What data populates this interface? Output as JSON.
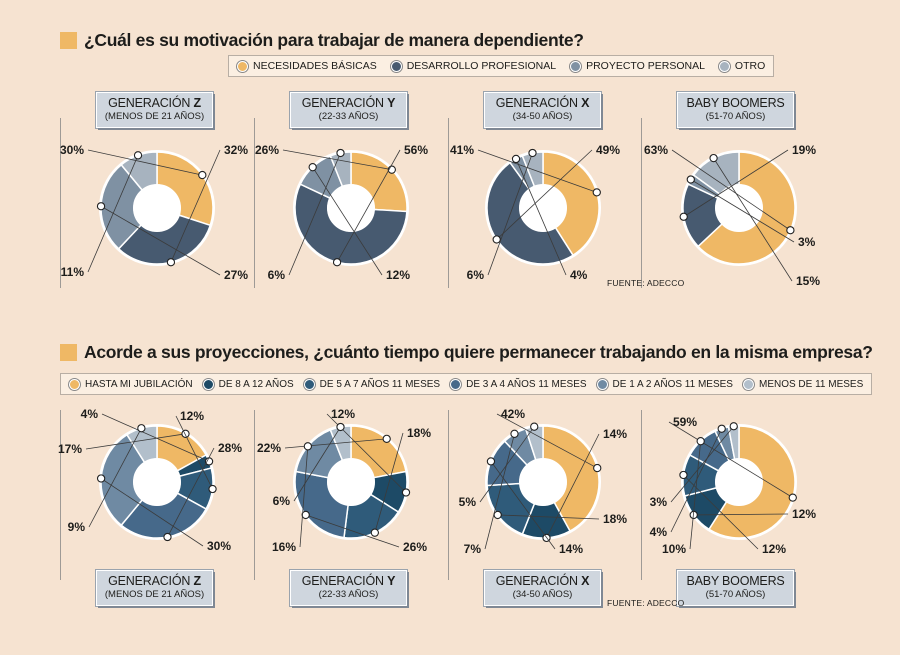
{
  "colors": {
    "background": "#f6e3d1",
    "accent": "#efb865",
    "navy_dark": "#475a70",
    "navy_mid": "#6f8397",
    "grey_blue": "#92a3b3",
    "light": "#b7c1cb"
  },
  "section1": {
    "title": "¿Cuál es su motivación para trabajar de manera dependiente?",
    "legend": [
      {
        "label": "NECESIDADES BÁSICAS",
        "color": "#efb865"
      },
      {
        "label": "DESARROLLO PROFESIONAL",
        "color": "#475a70"
      },
      {
        "label": "PROYECTO PERSONAL",
        "color": "#7f91a3"
      },
      {
        "label": "OTRO",
        "color": "#a7b3bf"
      }
    ],
    "source": "FUENTE: ADECCO"
  },
  "section2": {
    "title": "Acorde a sus proyecciones, ¿cuánto tiempo quiere permanecer trabajando en la misma empresa?",
    "legend": [
      {
        "label": "HASTA MI JUBILACIÓN",
        "color": "#efb865"
      },
      {
        "label": "DE 8 A 12 AÑOS",
        "color": "#1d4a66"
      },
      {
        "label": "DE 5 A 7 AÑOS 11 MESES",
        "color": "#2f5b7a"
      },
      {
        "label": "DE 3 A 4 AÑOS 11 MESES",
        "color": "#46698a"
      },
      {
        "label": "DE 1 A 2 AÑOS 11 MESES",
        "color": "#6f8aa3"
      },
      {
        "label": "MENOS DE 11 MESES",
        "color": "#b2bfcb"
      }
    ],
    "source": "FUENTE: ADECCO"
  },
  "generations": [
    {
      "prefix": "GENERACIÓN ",
      "bold": "Z",
      "range": "(MENOS DE 21 AÑOS)"
    },
    {
      "prefix": "GENERACIÓN ",
      "bold": "Y",
      "range": "(22-33 AÑOS)"
    },
    {
      "prefix": "GENERACIÓN ",
      "bold": "X",
      "range": "(34-50 AÑOS)"
    },
    {
      "prefix": "BABY BOOMERS",
      "bold": "",
      "range": "(51-70 AÑOS)"
    }
  ],
  "chart_data": [
    {
      "type": "pie",
      "title": "¿Cuál es su motivación para trabajar de manera dependiente?",
      "categories": [
        "NECESIDADES BÁSICAS",
        "DESARROLLO PROFESIONAL",
        "PROYECTO PERSONAL",
        "OTRO"
      ],
      "colors": [
        "#efb865",
        "#475a70",
        "#7f91a3",
        "#a7b3bf"
      ],
      "series": [
        {
          "name": "GENERACIÓN Z",
          "values": [
            30,
            32,
            27,
            11
          ],
          "labels": [
            "30%",
            "32%",
            "27%",
            "11%"
          ]
        },
        {
          "name": "GENERACIÓN Y",
          "values": [
            26,
            56,
            12,
            6
          ],
          "labels": [
            "26%",
            "56%",
            "12%",
            "6%"
          ]
        },
        {
          "name": "GENERACIÓN X",
          "values": [
            41,
            49,
            4,
            6
          ],
          "labels": [
            "41%",
            "49%",
            "4%",
            "6%"
          ]
        },
        {
          "name": "BABY BOOMERS",
          "values": [
            63,
            19,
            3,
            15
          ],
          "labels": [
            "63%",
            "19%",
            "3%",
            "15%"
          ]
        }
      ]
    },
    {
      "type": "pie",
      "title": "Acorde a sus proyecciones, ¿cuánto tiempo quiere permanecer trabajando en la misma empresa?",
      "categories": [
        "HASTA MI JUBILACIÓN",
        "DE 8 A 12 AÑOS",
        "DE 5 A 7 AÑOS 11 MESES",
        "DE 3 A 4 AÑOS 11 MESES",
        "DE 1 A 2 AÑOS 11 MESES",
        "MENOS DE 11 MESES"
      ],
      "colors": [
        "#efb865",
        "#1d4a66",
        "#2f5b7a",
        "#46698a",
        "#6f8aa3",
        "#b2bfcb"
      ],
      "series": [
        {
          "name": "GENERACIÓN Z",
          "values": [
            17,
            4,
            12,
            28,
            30,
            9
          ],
          "labels": [
            "17%",
            "4%",
            "12%",
            "28%",
            "30%",
            "9%"
          ]
        },
        {
          "name": "GENERACIÓN Y",
          "values": [
            22,
            12,
            18,
            26,
            16,
            6
          ],
          "labels": [
            "22%",
            "12%",
            "18%",
            "26%",
            "16%",
            "6%"
          ]
        },
        {
          "name": "GENERACIÓN X",
          "values": [
            42,
            14,
            18,
            14,
            7,
            5
          ],
          "labels": [
            "42%",
            "14%",
            "18%",
            "14%",
            "7%",
            "5%"
          ]
        },
        {
          "name": "BABY BOOMERS",
          "values": [
            59,
            12,
            12,
            10,
            4,
            3
          ],
          "labels": [
            "59%",
            "12%",
            "12%",
            "10%",
            "4%",
            "3%"
          ]
        }
      ]
    }
  ]
}
